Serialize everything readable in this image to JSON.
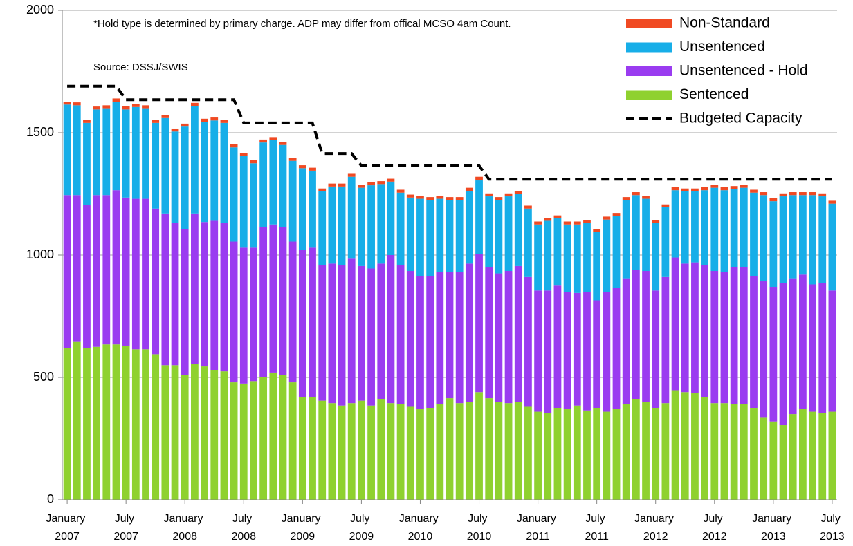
{
  "chart_data": {
    "type": "bar",
    "stacked": true,
    "annotations": [
      "*Hold type is determined by primary charge. ADP may differ from offical MCSO 4am Count.",
      "Source: DSSJ/SWIS"
    ],
    "categories": [
      "January 2007",
      null,
      null,
      null,
      null,
      null,
      "July 2007",
      null,
      null,
      null,
      null,
      null,
      "January 2008",
      null,
      null,
      null,
      null,
      null,
      "July 2008",
      null,
      null,
      null,
      null,
      null,
      "January 2009",
      null,
      null,
      null,
      null,
      null,
      "July 2009",
      null,
      null,
      null,
      null,
      null,
      "January 2010",
      null,
      null,
      null,
      null,
      null,
      "July 2010",
      null,
      null,
      null,
      null,
      null,
      "January 2011",
      null,
      null,
      null,
      null,
      null,
      "July 2011",
      null,
      null,
      null,
      null,
      null,
      "January 2012",
      null,
      null,
      null,
      null,
      null,
      "July 2012",
      null,
      null,
      null,
      null,
      null,
      "January 2013",
      null,
      null,
      null,
      null,
      null,
      "July 2013"
    ],
    "series": [
      {
        "name": "Sentenced",
        "color": "#8fd12f",
        "values": [
          620,
          645,
          620,
          625,
          635,
          635,
          630,
          615,
          615,
          595,
          550,
          550,
          510,
          555,
          545,
          530,
          525,
          480,
          475,
          485,
          500,
          520,
          510,
          480,
          420,
          420,
          405,
          395,
          385,
          395,
          405,
          385,
          410,
          395,
          390,
          380,
          370,
          375,
          390,
          415,
          395,
          400,
          440,
          415,
          400,
          395,
          400,
          380,
          360,
          355,
          375,
          370,
          385,
          365,
          375,
          360,
          370,
          390,
          410,
          400,
          375,
          395,
          445,
          440,
          435,
          420,
          395,
          395,
          390,
          390,
          375,
          335,
          320,
          305,
          350,
          370,
          360,
          355,
          360
        ]
      },
      {
        "name": "Unsentenced - Hold",
        "color": "#9a3cf0",
        "values": [
          625,
          600,
          585,
          620,
          610,
          630,
          605,
          615,
          615,
          595,
          620,
          580,
          595,
          615,
          590,
          610,
          605,
          575,
          555,
          545,
          615,
          605,
          605,
          575,
          600,
          610,
          555,
          570,
          575,
          590,
          550,
          560,
          555,
          605,
          570,
          555,
          545,
          540,
          540,
          515,
          535,
          565,
          565,
          535,
          525,
          540,
          555,
          530,
          495,
          500,
          500,
          480,
          460,
          485,
          440,
          490,
          495,
          515,
          530,
          535,
          480,
          515,
          545,
          525,
          535,
          540,
          540,
          535,
          560,
          560,
          540,
          560,
          550,
          580,
          555,
          550,
          520,
          530,
          495
        ]
      },
      {
        "name": "Unsentenced",
        "color": "#17aee8",
        "values": [
          370,
          367,
          335,
          350,
          355,
          360,
          360,
          375,
          370,
          350,
          390,
          375,
          420,
          440,
          410,
          410,
          410,
          385,
          375,
          345,
          345,
          345,
          335,
          330,
          335,
          315,
          300,
          315,
          320,
          335,
          320,
          340,
          325,
          300,
          295,
          300,
          315,
          310,
          300,
          295,
          295,
          295,
          300,
          290,
          300,
          305,
          295,
          280,
          270,
          285,
          275,
          275,
          280,
          280,
          280,
          295,
          295,
          320,
          305,
          295,
          275,
          285,
          275,
          295,
          290,
          305,
          340,
          335,
          320,
          325,
          340,
          350,
          350,
          355,
          340,
          325,
          365,
          355,
          355
        ]
      },
      {
        "name": "Non-Standard",
        "color": "#f04a23",
        "values": [
          12,
          12,
          12,
          12,
          12,
          15,
          15,
          12,
          12,
          12,
          12,
          12,
          12,
          12,
          12,
          12,
          12,
          12,
          12,
          12,
          12,
          12,
          12,
          12,
          12,
          12,
          12,
          12,
          12,
          12,
          12,
          12,
          12,
          12,
          12,
          12,
          12,
          12,
          12,
          12,
          12,
          15,
          15,
          12,
          12,
          12,
          12,
          12,
          12,
          12,
          12,
          12,
          12,
          12,
          12,
          12,
          12,
          12,
          12,
          12,
          12,
          12,
          12,
          12,
          12,
          12,
          12,
          12,
          12,
          12,
          12,
          12,
          12,
          12,
          12,
          12,
          12,
          12,
          12
        ]
      },
      {
        "name": "Budgeted Capacity",
        "type": "line",
        "color": "#000000",
        "dashed": true,
        "values": [
          1690,
          1690,
          1690,
          1690,
          1690,
          1690,
          1635,
          1635,
          1635,
          1635,
          1635,
          1635,
          1635,
          1635,
          1635,
          1635,
          1635,
          1635,
          1540,
          1540,
          1540,
          1540,
          1540,
          1540,
          1540,
          1540,
          1415,
          1415,
          1415,
          1415,
          1365,
          1365,
          1365,
          1365,
          1365,
          1365,
          1365,
          1365,
          1365,
          1365,
          1365,
          1365,
          1365,
          1310,
          1310,
          1310,
          1310,
          1310,
          1310,
          1310,
          1310,
          1310,
          1310,
          1310,
          1310,
          1310,
          1310,
          1310,
          1310,
          1310,
          1310,
          1310,
          1310,
          1310,
          1310,
          1310,
          1310,
          1310,
          1310,
          1310,
          1310,
          1310,
          1310,
          1310,
          1310,
          1310,
          1310,
          1310,
          1310
        ]
      }
    ],
    "ylim": [
      0,
      2000
    ],
    "yticks": [
      0,
      500,
      1000,
      1500,
      2000
    ],
    "grid": true,
    "legend": "upper right"
  }
}
